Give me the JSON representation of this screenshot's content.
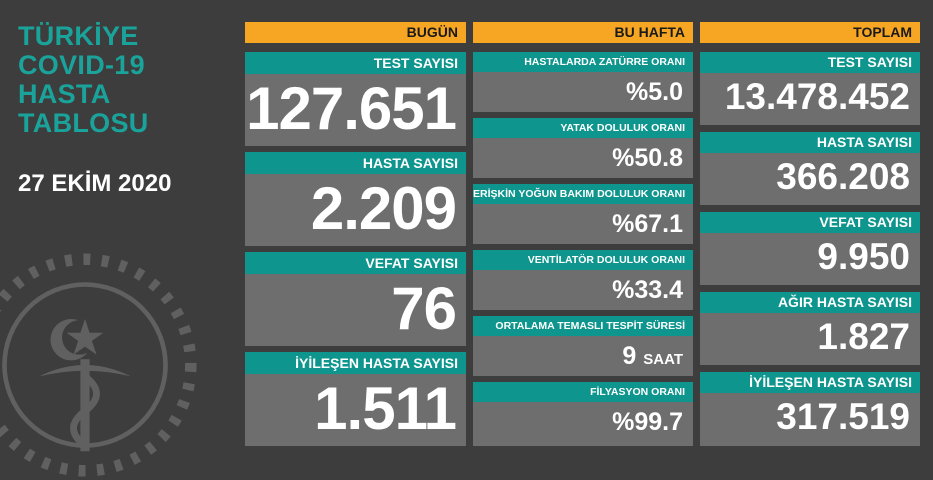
{
  "title": [
    "TÜRKİYE",
    "COVID-19",
    "HASTA",
    "TABLOSU"
  ],
  "date": "27 EKİM 2020",
  "today": {
    "header": "BUGÜN",
    "items": [
      {
        "label": "TEST SAYISI",
        "value": "127.651"
      },
      {
        "label": "HASTA SAYISI",
        "value": "2.209"
      },
      {
        "label": "VEFAT SAYISI",
        "value": "76"
      },
      {
        "label": "İYİLEŞEN HASTA SAYISI",
        "value": "1.511"
      }
    ]
  },
  "this_week": {
    "header": "BU HAFTA",
    "items": [
      {
        "label": "HASTALARDA ZATÜRRE ORANI",
        "value": "%5.0",
        "unit": ""
      },
      {
        "label": "YATAK DOLULUK ORANI",
        "value": "%50.8",
        "unit": ""
      },
      {
        "label": "ERİŞKİN YOĞUN BAKIM DOLULUK ORANI",
        "value": "%67.1",
        "unit": ""
      },
      {
        "label": "VENTİLATÖR DOLULUK ORANI",
        "value": "%33.4",
        "unit": ""
      },
      {
        "label": "ORTALAMA TEMASLI TESPİT SÜRESİ",
        "value": "9",
        "unit": "SAAT"
      },
      {
        "label": "FİLYASYON ORANI",
        "value": "%99.7",
        "unit": ""
      }
    ]
  },
  "total": {
    "header": "TOPLAM",
    "items": [
      {
        "label": "TEST SAYISI",
        "value": "13.478.452"
      },
      {
        "label": "HASTA SAYISI",
        "value": "366.208"
      },
      {
        "label": "VEFAT SAYISI",
        "value": "9.950"
      },
      {
        "label": "AĞIR HASTA SAYISI",
        "value": "1.827"
      },
      {
        "label": "İYİLEŞEN HASTA SAYISI",
        "value": "317.519"
      }
    ]
  },
  "colors": {
    "background": "#3d3d3d",
    "header": "#f6a623",
    "label": "#0e958d",
    "card": "#6e6e6e",
    "title": "#1aa39b"
  }
}
